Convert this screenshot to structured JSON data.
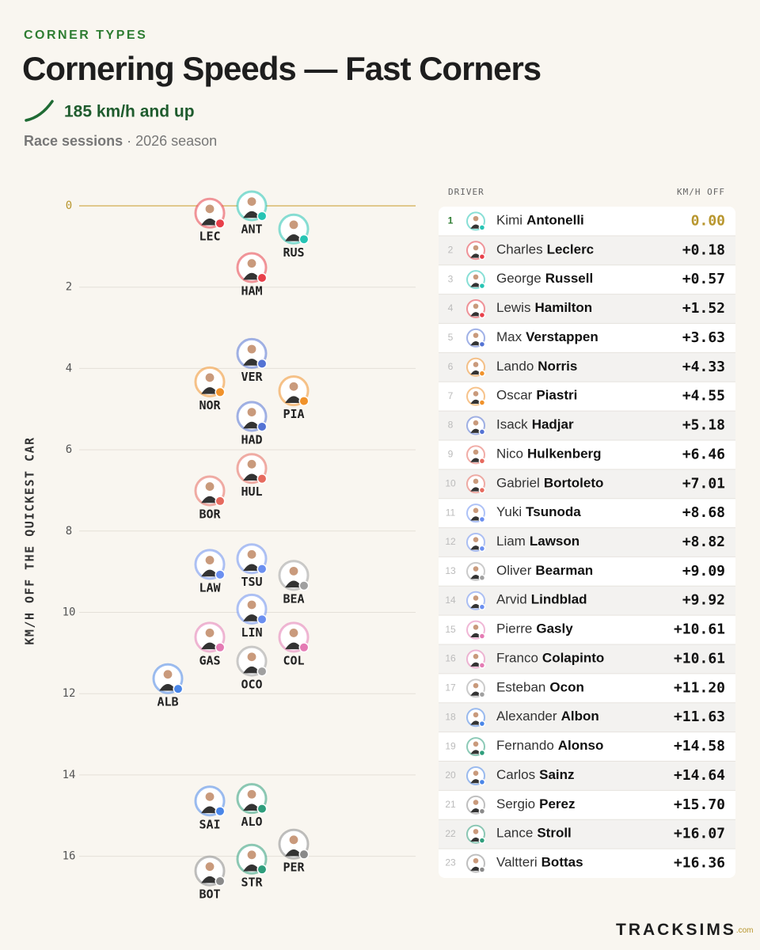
{
  "chart_data": {
    "type": "dot",
    "kicker": "CORNER TYPES",
    "title": "Cornering Speeds — Fast Corners",
    "subtitle": "185 km/h and up",
    "note_bold": "Race sessions",
    "note": "· 2026 season",
    "y_label": "KM/H OFF THE QUICKEST CAR",
    "ylim": [
      0,
      17
    ],
    "yticks": [
      0,
      2,
      4,
      6,
      8,
      10,
      12,
      14,
      16
    ],
    "grid": true,
    "table_headers": [
      "DRIVER",
      "KM/H OFF"
    ],
    "footer": "TRACKSIMS",
    "footer_suffix": ".com",
    "drivers": [
      {
        "rank": 1,
        "code": "ANT",
        "first": "Kimi",
        "last": "Antonelli",
        "value": 0,
        "value_label": "0.00",
        "color": "#27c4b4"
      },
      {
        "rank": 2,
        "code": "LEC",
        "first": "Charles",
        "last": "Leclerc",
        "value": 0.18,
        "value_label": "+0.18",
        "color": "#e8404a"
      },
      {
        "rank": 3,
        "code": "RUS",
        "first": "George",
        "last": "Russell",
        "value": 0.57,
        "value_label": "+0.57",
        "color": "#27c4b4"
      },
      {
        "rank": 4,
        "code": "HAM",
        "first": "Lewis",
        "last": "Hamilton",
        "value": 1.52,
        "value_label": "+1.52",
        "color": "#e8404a"
      },
      {
        "rank": 5,
        "code": "VER",
        "first": "Max",
        "last": "Verstappen",
        "value": 3.63,
        "value_label": "+3.63",
        "color": "#5473d4"
      },
      {
        "rank": 6,
        "code": "NOR",
        "first": "Lando",
        "last": "Norris",
        "value": 4.33,
        "value_label": "+4.33",
        "color": "#f0922b"
      },
      {
        "rank": 7,
        "code": "PIA",
        "first": "Oscar",
        "last": "Piastri",
        "value": 4.55,
        "value_label": "+4.55",
        "color": "#f0922b"
      },
      {
        "rank": 8,
        "code": "HAD",
        "first": "Isack",
        "last": "Hadjar",
        "value": 5.18,
        "value_label": "+5.18",
        "color": "#5473d4"
      },
      {
        "rank": 9,
        "code": "HUL",
        "first": "Nico",
        "last": "Hulkenberg",
        "value": 6.46,
        "value_label": "+6.46",
        "color": "#e66a5e"
      },
      {
        "rank": 10,
        "code": "BOR",
        "first": "Gabriel",
        "last": "Bortoleto",
        "value": 7.01,
        "value_label": "+7.01",
        "color": "#e66a5e"
      },
      {
        "rank": 11,
        "code": "TSU",
        "first": "Yuki",
        "last": "Tsunoda",
        "value": 8.68,
        "value_label": "+8.68",
        "color": "#6b8ff0"
      },
      {
        "rank": 12,
        "code": "LAW",
        "first": "Liam",
        "last": "Lawson",
        "value": 8.82,
        "value_label": "+8.82",
        "color": "#6b8ff0"
      },
      {
        "rank": 13,
        "code": "BEA",
        "first": "Oliver",
        "last": "Bearman",
        "value": 9.09,
        "value_label": "+9.09",
        "color": "#a0a0a0"
      },
      {
        "rank": 14,
        "code": "LIN",
        "first": "Arvid",
        "last": "Lindblad",
        "value": 9.92,
        "value_label": "+9.92",
        "color": "#6b8ff0"
      },
      {
        "rank": 15,
        "code": "GAS",
        "first": "Pierre",
        "last": "Gasly",
        "value": 10.61,
        "value_label": "+10.61",
        "color": "#e47bb4"
      },
      {
        "rank": 16,
        "code": "COL",
        "first": "Franco",
        "last": "Colapinto",
        "value": 10.61,
        "value_label": "+10.61",
        "color": "#e47bb4"
      },
      {
        "rank": 17,
        "code": "OCO",
        "first": "Esteban",
        "last": "Ocon",
        "value": 11.2,
        "value_label": "+11.20",
        "color": "#a0a0a0"
      },
      {
        "rank": 18,
        "code": "ALB",
        "first": "Alexander",
        "last": "Albon",
        "value": 11.63,
        "value_label": "+11.63",
        "color": "#4a86e8"
      },
      {
        "rank": 19,
        "code": "ALO",
        "first": "Fernando",
        "last": "Alonso",
        "value": 14.58,
        "value_label": "+14.58",
        "color": "#2f9e7c"
      },
      {
        "rank": 20,
        "code": "SAI",
        "first": "Carlos",
        "last": "Sainz",
        "value": 14.64,
        "value_label": "+14.64",
        "color": "#4a86e8"
      },
      {
        "rank": 21,
        "code": "PER",
        "first": "Sergio",
        "last": "Perez",
        "value": 15.7,
        "value_label": "+15.70",
        "color": "#8a8a8a"
      },
      {
        "rank": 22,
        "code": "STR",
        "first": "Lance",
        "last": "Stroll",
        "value": 16.07,
        "value_label": "+16.07",
        "color": "#2f9e7c"
      },
      {
        "rank": 23,
        "code": "BOT",
        "first": "Valtteri",
        "last": "Bottas",
        "value": 16.36,
        "value_label": "+16.36",
        "color": "#8a8a8a"
      }
    ]
  }
}
